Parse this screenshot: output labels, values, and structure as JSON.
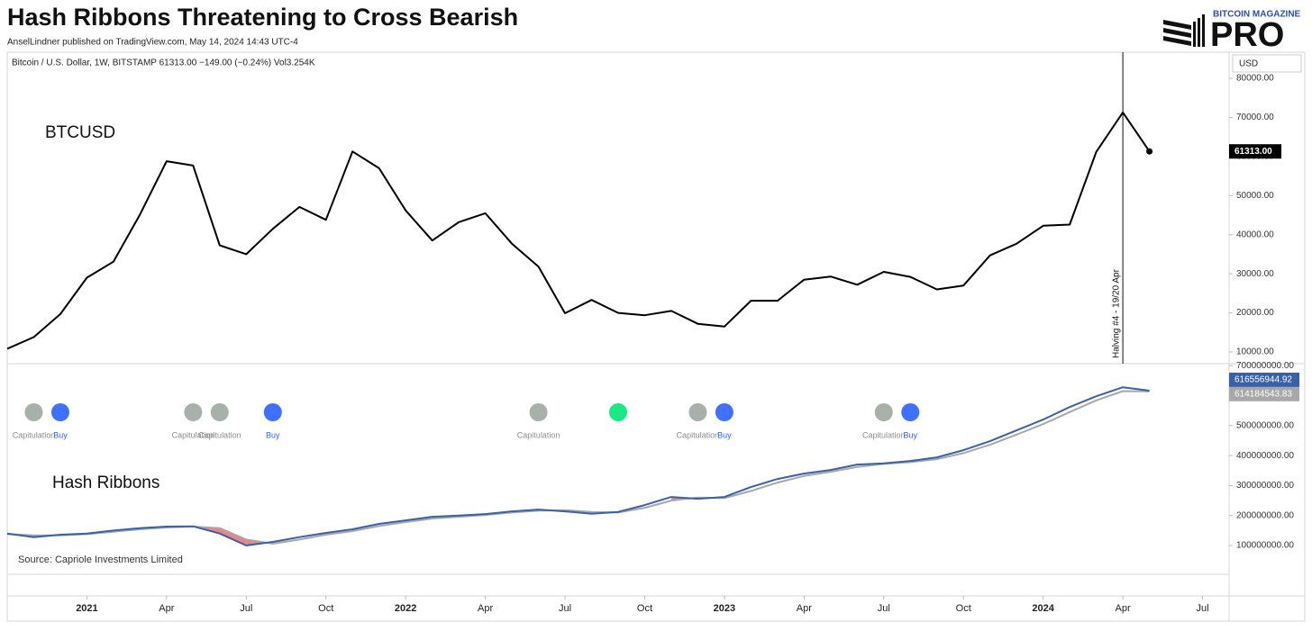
{
  "header": {
    "title": "Hash Ribbons Threatening to Cross Bearish",
    "subtitle": "AnselLindner published on TradingView.com, May 14, 2024 14:43 UTC-4",
    "logo_top": "BITCOIN MAGAZINE",
    "logo_main": "PRO"
  },
  "chart_data": [
    {
      "type": "line",
      "symbol_info": "Bitcoin / U.S. Dollar, 1W, BITSTAMP  61313.00  −149.00 (−0.24%)  Vol3.254K",
      "currency": "USD",
      "label": "BTCUSD",
      "color": "#000000",
      "x": [
        "2020-10",
        "2020-11",
        "2020-12",
        "2021-01",
        "2021-02",
        "2021-03",
        "2021-04",
        "2021-05",
        "2021-06",
        "2021-07",
        "2021-08",
        "2021-09",
        "2021-10",
        "2021-11",
        "2021-12",
        "2022-01",
        "2022-02",
        "2022-03",
        "2022-04",
        "2022-05",
        "2022-06",
        "2022-07",
        "2022-08",
        "2022-09",
        "2022-10",
        "2022-11",
        "2022-12",
        "2023-01",
        "2023-02",
        "2023-03",
        "2023-04",
        "2023-05",
        "2023-06",
        "2023-07",
        "2023-08",
        "2023-09",
        "2023-10",
        "2023-11",
        "2023-12",
        "2024-01",
        "2024-02",
        "2024-03",
        "2024-04",
        "2024-05"
      ],
      "values": [
        10800,
        13800,
        19700,
        29000,
        33100,
        45200,
        58800,
        57700,
        37300,
        35000,
        41500,
        47100,
        43800,
        61300,
        57000,
        46200,
        38500,
        43200,
        45500,
        37700,
        31800,
        19900,
        23300,
        20000,
        19400,
        20500,
        17200,
        16500,
        23100,
        23100,
        28500,
        29300,
        27200,
        30500,
        29200,
        26000,
        27000,
        34700,
        37700,
        42300,
        42600,
        61200,
        71300,
        61313
      ],
      "value_labels": [
        null,
        null,
        null,
        null,
        null,
        null,
        null,
        null,
        null,
        null,
        null,
        null,
        null,
        null,
        null,
        null,
        null,
        null,
        null,
        null,
        null,
        null,
        null,
        null,
        null,
        null,
        null,
        null,
        null,
        null,
        null,
        null,
        null,
        null,
        null,
        null,
        null,
        null,
        null,
        null,
        null,
        null,
        null,
        "61313.00"
      ],
      "annotation": {
        "x": "2024-04",
        "label": "Halving #4 - 19/20 Apr"
      },
      "xlim": [
        "2020-10",
        "2024-08"
      ],
      "ylim": [
        7000,
        86700
      ],
      "yticks": [
        {
          "value": 10000,
          "label": "10000.00"
        },
        {
          "value": 20000,
          "label": "20000.00"
        },
        {
          "value": 30000,
          "label": "30000.00"
        },
        {
          "value": 40000,
          "label": "40000.00"
        },
        {
          "value": 50000,
          "label": "50000.00"
        },
        {
          "value": 60000,
          "label": "60000.00"
        },
        {
          "value": 70000,
          "label": "70000.00"
        },
        {
          "value": 80000,
          "label": "80000.00"
        }
      ]
    },
    {
      "type": "line",
      "label": "Hash Ribbons",
      "source": "Source: Capriole Investments Limited",
      "x": [
        "2020-10",
        "2020-11",
        "2020-12",
        "2021-01",
        "2021-02",
        "2021-03",
        "2021-04",
        "2021-05",
        "2021-06",
        "2021-07",
        "2021-08",
        "2021-09",
        "2021-10",
        "2021-11",
        "2021-12",
        "2022-01",
        "2022-02",
        "2022-03",
        "2022-04",
        "2022-05",
        "2022-06",
        "2022-07",
        "2022-08",
        "2022-09",
        "2022-10",
        "2022-11",
        "2022-12",
        "2023-01",
        "2023-02",
        "2023-03",
        "2023-04",
        "2023-05",
        "2023-06",
        "2023-07",
        "2023-08",
        "2023-09",
        "2023-10",
        "2023-11",
        "2023-12",
        "2024-01",
        "2024-02",
        "2024-03",
        "2024-04",
        "2024-05"
      ],
      "series": [
        {
          "color": "#3861a8",
          "values": [
            140000000,
            128000000,
            136000000,
            140000000,
            150000000,
            158000000,
            163000000,
            164000000,
            140000000,
            100000000,
            112000000,
            128000000,
            142000000,
            154000000,
            172000000,
            184000000,
            196000000,
            200000000,
            205000000,
            214000000,
            220000000,
            214000000,
            206000000,
            212000000,
            235000000,
            262000000,
            256000000,
            262000000,
            295000000,
            322000000,
            340000000,
            352000000,
            370000000,
            374000000,
            382000000,
            394000000,
            418000000,
            448000000,
            484000000,
            520000000,
            562000000,
            598000000,
            628000000,
            616556944.92
          ],
          "value_labels": [
            null,
            null,
            null,
            null,
            null,
            null,
            null,
            null,
            null,
            null,
            null,
            null,
            null,
            null,
            null,
            null,
            null,
            null,
            null,
            null,
            null,
            null,
            null,
            null,
            null,
            null,
            null,
            null,
            null,
            null,
            null,
            null,
            null,
            null,
            null,
            null,
            null,
            null,
            null,
            null,
            null,
            null,
            null,
            "616556944.92"
          ]
        },
        {
          "color": "#a8a8a8",
          "values": [
            138000000,
            134000000,
            134000000,
            138000000,
            146000000,
            154000000,
            160000000,
            163000000,
            158000000,
            120000000,
            106000000,
            120000000,
            136000000,
            148000000,
            165000000,
            178000000,
            190000000,
            196000000,
            202000000,
            210000000,
            216000000,
            218000000,
            212000000,
            210000000,
            226000000,
            250000000,
            260000000,
            258000000,
            282000000,
            310000000,
            332000000,
            346000000,
            362000000,
            372000000,
            378000000,
            388000000,
            408000000,
            436000000,
            470000000,
            505000000,
            545000000,
            584000000,
            615000000,
            614184543.83
          ],
          "value_labels": [
            null,
            null,
            null,
            null,
            null,
            null,
            null,
            null,
            null,
            null,
            null,
            null,
            null,
            null,
            null,
            null,
            null,
            null,
            null,
            null,
            null,
            null,
            null,
            null,
            null,
            null,
            null,
            null,
            null,
            null,
            null,
            null,
            null,
            null,
            null,
            null,
            null,
            null,
            null,
            null,
            null,
            null,
            null,
            "614184543.83"
          ]
        }
      ],
      "capitulation_color": "#e8585c",
      "signals": [
        {
          "x": "2020-11",
          "color": "#9fa8a0",
          "label": "Capitulation"
        },
        {
          "x": "2020-12",
          "color": "#2962ff",
          "label": "Buy"
        },
        {
          "x": "2021-05",
          "color": "#9fa8a0",
          "label": "Capitulation"
        },
        {
          "x": "2021-06",
          "color": "#9fa8a0",
          "label": "Capitulation"
        },
        {
          "x": "2021-08",
          "color": "#2962ff",
          "label": "Buy"
        },
        {
          "x": "2022-06",
          "color": "#9fa8a0",
          "label": "Capitulation"
        },
        {
          "x": "2022-09",
          "color": "#00e676"
        },
        {
          "x": "2022-12",
          "color": "#9fa8a0",
          "label": "Capitulation"
        },
        {
          "x": "2023-01",
          "color": "#2962ff",
          "label": "Buy"
        },
        {
          "x": "2023-07",
          "color": "#9fa8a0",
          "label": "Capitulation"
        },
        {
          "x": "2023-08",
          "color": "#2962ff",
          "label": "Buy"
        }
      ],
      "xlim": [
        "2020-10",
        "2024-08"
      ],
      "xticks": [
        {
          "value": "2021-01",
          "label": "2021"
        },
        {
          "value": "2021-04",
          "label": "Apr"
        },
        {
          "value": "2021-07",
          "label": "Jul"
        },
        {
          "value": "2021-10",
          "label": "Oct"
        },
        {
          "value": "2022-01",
          "label": "2022"
        },
        {
          "value": "2022-04",
          "label": "Apr"
        },
        {
          "value": "2022-07",
          "label": "Jul"
        },
        {
          "value": "2022-10",
          "label": "Oct"
        },
        {
          "value": "2023-01",
          "label": "2023"
        },
        {
          "value": "2023-04",
          "label": "Apr"
        },
        {
          "value": "2023-07",
          "label": "Jul"
        },
        {
          "value": "2023-10",
          "label": "Oct"
        },
        {
          "value": "2024-01",
          "label": "2024"
        },
        {
          "value": "2024-04",
          "label": "Apr"
        },
        {
          "value": "2024-07",
          "label": "Jul"
        }
      ],
      "ylim": [
        4000000,
        706600000
      ],
      "yticks": [
        {
          "value": 100000000,
          "label": "100000000.00"
        },
        {
          "value": 200000000,
          "label": "200000000.00"
        },
        {
          "value": 300000000,
          "label": "300000000.00"
        },
        {
          "value": 400000000,
          "label": "400000000.00"
        },
        {
          "value": 500000000,
          "label": "500000000.00"
        },
        {
          "value": 700000000,
          "label": "700000000.00"
        }
      ]
    }
  ]
}
